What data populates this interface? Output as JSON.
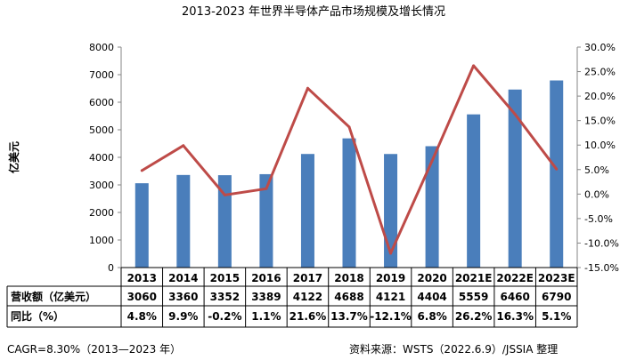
{
  "chart_data": {
    "type": "bar",
    "title": "2013-2023 年世界半导体产品市场规模及增长情况",
    "ylabel": "亿美元",
    "ylim": [
      0,
      8000
    ],
    "y_ticks": [
      "0",
      "1000",
      "2000",
      "3000",
      "4000",
      "5000",
      "6000",
      "7000",
      "8000"
    ],
    "y2lim": [
      -15,
      30
    ],
    "y2_ticks": [
      "-15.0%",
      "-10.0%",
      "-5.0%",
      "0.0%",
      "5.0%",
      "10.0%",
      "15.0%",
      "20.0%",
      "25.0%",
      "30.0%"
    ],
    "categories": [
      "2013",
      "2014",
      "2015",
      "2016",
      "2017",
      "2018",
      "2019",
      "2020",
      "2021E",
      "2022E",
      "2023E"
    ],
    "series": [
      {
        "name": "营收额（亿美元）",
        "type": "bar",
        "color": "#4a7ebb",
        "values": [
          3060,
          3360,
          3352,
          3389,
          4122,
          4688,
          4121,
          4404,
          5559,
          6460,
          6790
        ],
        "labels": [
          "3060",
          "3360",
          "3352",
          "3389",
          "4122",
          "4688",
          "4121",
          "4404",
          "5559",
          "6460",
          "6790"
        ]
      },
      {
        "name": "同比（%）",
        "type": "line",
        "axis": "right",
        "color": "#be4b48",
        "values": [
          4.8,
          9.9,
          -0.2,
          1.1,
          21.6,
          13.7,
          -12.1,
          6.8,
          26.2,
          16.3,
          5.1
        ],
        "labels": [
          "4.8%",
          "9.9%",
          "-0.2%",
          "1.1%",
          "21.6%",
          "13.7%",
          "-12.1%",
          "6.8%",
          "26.2%",
          "16.3%",
          "5.1%"
        ]
      }
    ],
    "grid": false,
    "legend": "data-table"
  },
  "footer": {
    "cagr": "CAGR=8.30%（2013—2023 年）",
    "source": "资料来源：WSTS（2022.6.9）/JSSIA 整理"
  }
}
